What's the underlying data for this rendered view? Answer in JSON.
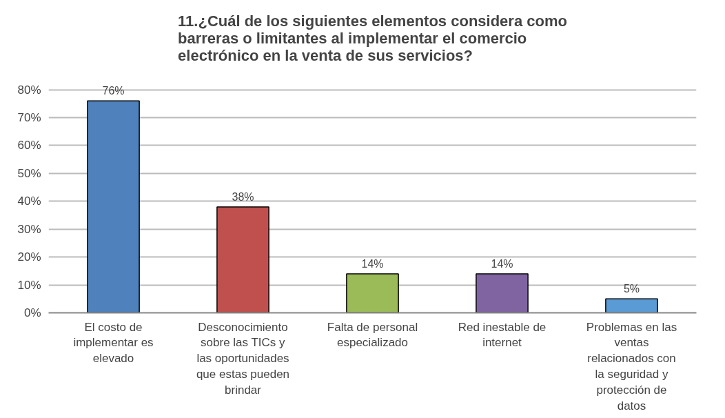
{
  "chart_data": {
    "type": "bar",
    "title": "11.¿Cuál de los siguientes elementos considera como barreras o limitantes al implementar el comercio electrónico en la venta de sus servicios?",
    "categories": [
      "El costo de implementar es elevado",
      "Desconocimiento sobre las TICs y las oportunidades que estas pueden brindar",
      "Falta de personal especializado",
      "Red inestable de internet",
      "Problemas en las ventas relacionados con la seguridad y protección de datos"
    ],
    "values": [
      76,
      38,
      14,
      14,
      5
    ],
    "colors": [
      "#4f81bd",
      "#c0504d",
      "#9bbb59",
      "#8064a2",
      "#5b9bd5"
    ],
    "value_labels": [
      "76%",
      "38%",
      "14%",
      "14%",
      "5%"
    ],
    "ylim": [
      0,
      80
    ],
    "yticks": [
      {
        "value": 0,
        "label": "0%"
      },
      {
        "value": 10,
        "label": "10%"
      },
      {
        "value": 20,
        "label": "20%"
      },
      {
        "value": 30,
        "label": "30%"
      },
      {
        "value": 40,
        "label": "40%"
      },
      {
        "value": 50,
        "label": "50%"
      },
      {
        "value": 60,
        "label": "60%"
      },
      {
        "value": 70,
        "label": "70%"
      },
      {
        "value": 80,
        "label": "80%"
      }
    ],
    "grid": "y"
  }
}
